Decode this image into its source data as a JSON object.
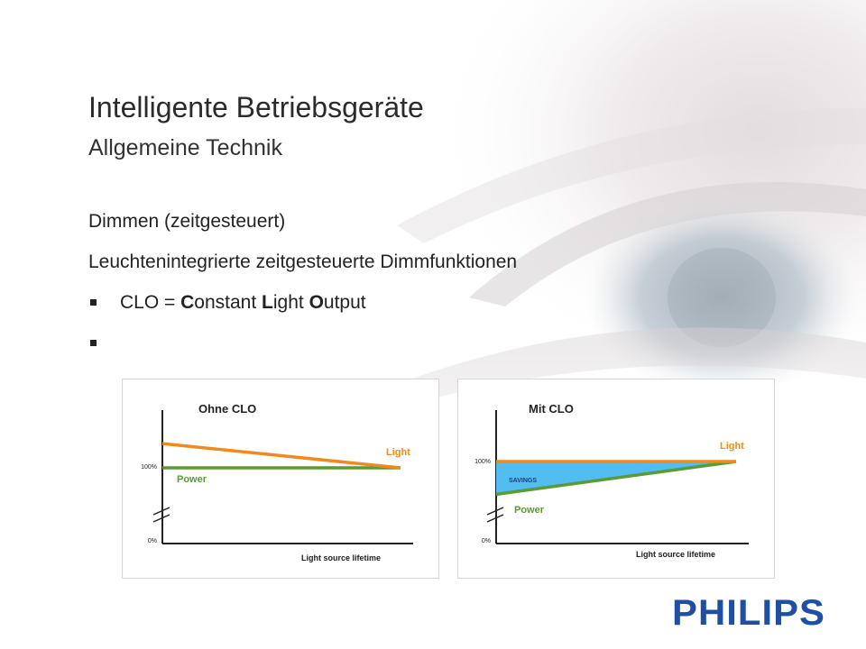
{
  "slide": {
    "title": "Intelligente Betriebsgeräte",
    "subtitle": "Allgemeine Technik",
    "heading": "Dimmen (zeitgesteuert)",
    "description": "Leuchtenintegrierte zeitgesteuerte Dimmfunktionen",
    "bullets": [
      {
        "parts": [
          "CLO = ",
          "C",
          "onstant ",
          "L",
          "ight ",
          "O",
          "utput"
        ]
      },
      {
        "parts": []
      }
    ]
  },
  "chart_data": [
    {
      "type": "line",
      "title": "Ohne CLO",
      "xlabel": "Light source lifetime",
      "ylabel": "",
      "y_ticks": [
        "0%",
        "100%"
      ],
      "series": [
        {
          "name": "Light",
          "color": "#F08A1C",
          "values": [
            132,
            100
          ]
        },
        {
          "name": "Power",
          "color": "#5B9A34",
          "values": [
            100,
            100
          ]
        }
      ]
    },
    {
      "type": "area",
      "title": "Mit CLO",
      "xlabel": "Light source lifetime",
      "ylabel": "",
      "y_ticks": [
        "0%",
        "100%"
      ],
      "annotation": "SAVINGS",
      "annotation_color": "#52BDF0",
      "series": [
        {
          "name": "Light",
          "color": "#F08A1C",
          "values": [
            100,
            100
          ]
        },
        {
          "name": "Power",
          "color": "#5B9A34",
          "values": [
            60,
            100
          ]
        }
      ]
    }
  ],
  "logo": {
    "text": "PHILIPS",
    "color": "#1E4FA3"
  }
}
